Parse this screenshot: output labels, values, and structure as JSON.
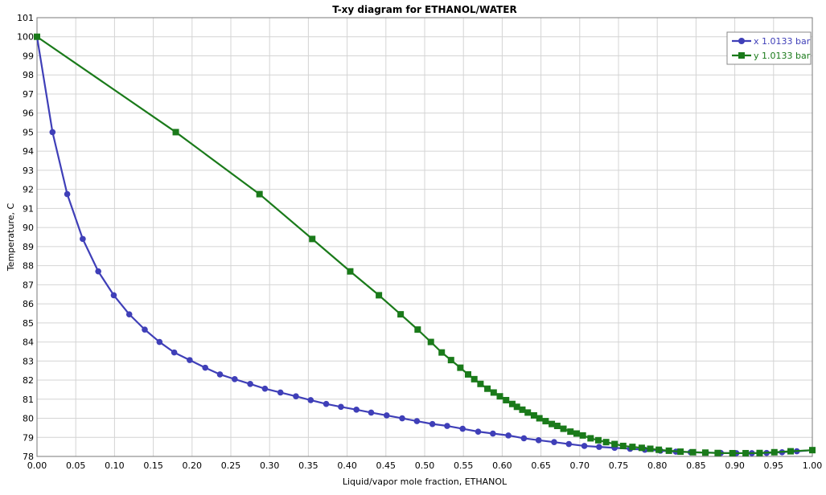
{
  "chart_data": {
    "type": "line",
    "title": "T-xy diagram for ETHANOL/WATER",
    "xlabel": "Liquid/vapor mole fraction, ETHANOL",
    "ylabel": "Temperature, C",
    "xlim": [
      0,
      1
    ],
    "ylim": [
      78,
      101
    ],
    "xticks": [
      "0.00",
      "0.05",
      "0.10",
      "0.15",
      "0.20",
      "0.25",
      "0.30",
      "0.35",
      "0.40",
      "0.45",
      "0.50",
      "0.55",
      "0.60",
      "0.65",
      "0.70",
      "0.75",
      "0.80",
      "0.85",
      "0.90",
      "0.95",
      "1.00"
    ],
    "yticks": [
      "78",
      "79",
      "80",
      "81",
      "82",
      "83",
      "84",
      "85",
      "86",
      "87",
      "88",
      "89",
      "90",
      "91",
      "92",
      "93",
      "94",
      "95",
      "96",
      "97",
      "98",
      "99",
      "100",
      "101"
    ],
    "grid": true,
    "legend_position": "top-right",
    "series": [
      {
        "name": "x 1.0133 bar",
        "color": "#3f3fb8",
        "marker": "circle",
        "points": [
          [
            0.0,
            100.0
          ],
          [
            0.02,
            95.0
          ],
          [
            0.039,
            91.75
          ],
          [
            0.059,
            89.4
          ],
          [
            0.079,
            87.7
          ],
          [
            0.099,
            86.45
          ],
          [
            0.119,
            85.45
          ],
          [
            0.139,
            84.65
          ],
          [
            0.158,
            84.0
          ],
          [
            0.177,
            83.45
          ],
          [
            0.197,
            83.05
          ],
          [
            0.217,
            82.65
          ],
          [
            0.236,
            82.3
          ],
          [
            0.255,
            82.05
          ],
          [
            0.275,
            81.8
          ],
          [
            0.294,
            81.55
          ],
          [
            0.314,
            81.35
          ],
          [
            0.334,
            81.15
          ],
          [
            0.353,
            80.95
          ],
          [
            0.373,
            80.75
          ],
          [
            0.392,
            80.6
          ],
          [
            0.412,
            80.45
          ],
          [
            0.431,
            80.3
          ],
          [
            0.451,
            80.15
          ],
          [
            0.471,
            80.0
          ],
          [
            0.49,
            79.85
          ],
          [
            0.51,
            79.7
          ],
          [
            0.529,
            79.6
          ],
          [
            0.549,
            79.45
          ],
          [
            0.569,
            79.3
          ],
          [
            0.588,
            79.2
          ],
          [
            0.608,
            79.1
          ],
          [
            0.628,
            78.95
          ],
          [
            0.647,
            78.85
          ],
          [
            0.667,
            78.75
          ],
          [
            0.686,
            78.65
          ],
          [
            0.706,
            78.55
          ],
          [
            0.725,
            78.5
          ],
          [
            0.745,
            78.45
          ],
          [
            0.765,
            78.4
          ],
          [
            0.784,
            78.35
          ],
          [
            0.804,
            78.3
          ],
          [
            0.824,
            78.25
          ],
          [
            0.843,
            78.22
          ],
          [
            0.863,
            78.2
          ],
          [
            0.882,
            78.18
          ],
          [
            0.902,
            78.17
          ],
          [
            0.922,
            78.17
          ],
          [
            0.941,
            78.18
          ],
          [
            0.961,
            78.22
          ],
          [
            0.98,
            78.27
          ],
          [
            1.0,
            78.33
          ]
        ]
      },
      {
        "name": "y 1.0133 bar",
        "color": "#1a7a1a",
        "marker": "square",
        "points": [
          [
            0.0,
            100.0
          ],
          [
            0.179,
            95.0
          ],
          [
            0.287,
            91.75
          ],
          [
            0.355,
            89.4
          ],
          [
            0.404,
            87.7
          ],
          [
            0.441,
            86.45
          ],
          [
            0.469,
            85.45
          ],
          [
            0.491,
            84.65
          ],
          [
            0.508,
            84.0
          ],
          [
            0.522,
            83.45
          ],
          [
            0.534,
            83.05
          ],
          [
            0.546,
            82.65
          ],
          [
            0.556,
            82.3
          ],
          [
            0.564,
            82.05
          ],
          [
            0.572,
            81.8
          ],
          [
            0.581,
            81.55
          ],
          [
            0.589,
            81.35
          ],
          [
            0.597,
            81.15
          ],
          [
            0.605,
            80.95
          ],
          [
            0.613,
            80.75
          ],
          [
            0.619,
            80.6
          ],
          [
            0.626,
            80.45
          ],
          [
            0.633,
            80.3
          ],
          [
            0.641,
            80.15
          ],
          [
            0.648,
            80.0
          ],
          [
            0.656,
            79.85
          ],
          [
            0.664,
            79.7
          ],
          [
            0.671,
            79.6
          ],
          [
            0.679,
            79.45
          ],
          [
            0.688,
            79.3
          ],
          [
            0.696,
            79.2
          ],
          [
            0.704,
            79.1
          ],
          [
            0.714,
            78.95
          ],
          [
            0.724,
            78.85
          ],
          [
            0.734,
            78.75
          ],
          [
            0.745,
            78.65
          ],
          [
            0.756,
            78.55
          ],
          [
            0.768,
            78.5
          ],
          [
            0.78,
            78.45
          ],
          [
            0.791,
            78.4
          ],
          [
            0.802,
            78.35
          ],
          [
            0.815,
            78.3
          ],
          [
            0.83,
            78.25
          ],
          [
            0.846,
            78.22
          ],
          [
            0.862,
            78.2
          ],
          [
            0.878,
            78.18
          ],
          [
            0.897,
            78.17
          ],
          [
            0.914,
            78.17
          ],
          [
            0.932,
            78.18
          ],
          [
            0.951,
            78.22
          ],
          [
            0.972,
            78.27
          ],
          [
            1.0,
            78.33
          ]
        ]
      }
    ]
  }
}
